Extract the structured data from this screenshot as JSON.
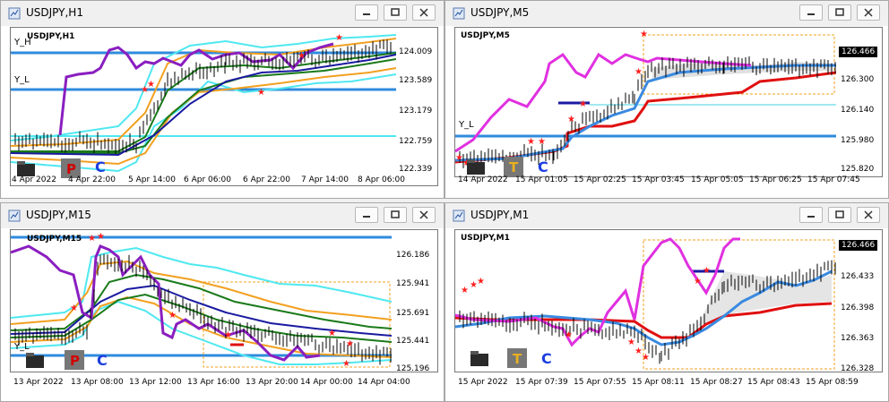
{
  "colors": {
    "kijun": "#e01010",
    "tenkan": "#3a8ae0",
    "chikou": "#e030e0",
    "ma_purple": "#8a1ec0",
    "band_cyan": "#4fe8f0",
    "band_orange": "#f2a020",
    "band_green": "#1a7a1a",
    "band_navy": "#1a1aa0",
    "level": "#2f8bdc",
    "star": "#ff2020"
  },
  "windows": [
    {
      "title": "USDJPY,H1",
      "symbol": "USDJPY,H1",
      "levels": [
        "Y_H",
        "Y_L"
      ],
      "price_labels": [
        "124.009",
        "123.589",
        "123.179",
        "122.759",
        "122.339"
      ],
      "time_labels": [
        "4 Apr 2022",
        "4 Apr 22:00",
        "5 Apr 14:00",
        "6 Apr 06:00",
        "6 Apr 22:00",
        "7 Apr 14:00",
        "8 Apr 06:00"
      ],
      "tool_c": "C"
    },
    {
      "title": "USDJPY,M5",
      "symbol": "USDJPY,M5",
      "levels": [
        "Y_L"
      ],
      "price_labels": [
        "126.300",
        "126.140",
        "125.980",
        "125.820"
      ],
      "current_price": "126.466",
      "time_labels": [
        "14 Apr 2022",
        "15 Apr 01:05",
        "15 Apr 02:25",
        "15 Apr 03:45",
        "15 Apr 05:05",
        "15 Apr 06:25",
        "15 Apr 07:45"
      ],
      "tool_c": "C"
    },
    {
      "title": "USDJPY,M15",
      "symbol": "USDJPY,M15",
      "levels": [
        "Y_L"
      ],
      "price_labels": [
        "126.186",
        "125.941",
        "125.691",
        "125.441",
        "125.196"
      ],
      "time_labels": [
        "13 Apr 2022",
        "13 Apr 08:00",
        "13 Apr 12:00",
        "13 Apr 16:00",
        "13 Apr 20:00",
        "14 Apr 00:00",
        "14 Apr 04:00"
      ],
      "tool_c": "C"
    },
    {
      "title": "USDJPY,M1",
      "symbol": "USDJPY,M1",
      "levels": [],
      "price_labels": [
        "126.433",
        "126.398",
        "126.363",
        "126.328"
      ],
      "current_price": "126.466",
      "time_labels": [
        "15 Apr 2022",
        "15 Apr 07:39",
        "15 Apr 07:55",
        "15 Apr 08:11",
        "15 Apr 08:27",
        "15 Apr 08:43",
        "15 Apr 08:59"
      ],
      "tool_c": "C"
    }
  ]
}
